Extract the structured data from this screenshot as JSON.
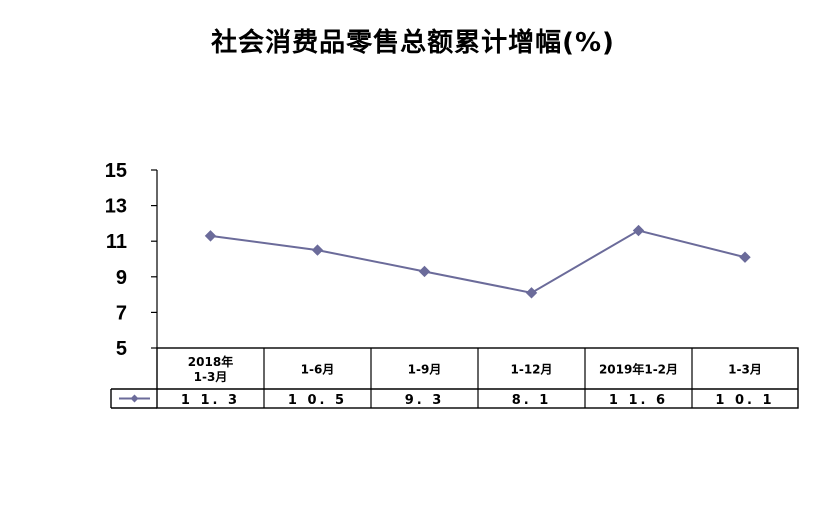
{
  "chart_data": {
    "type": "line",
    "title": "社会消费品零售总额累计增幅(%)",
    "categories": [
      [
        "2018年",
        "1-3月"
      ],
      [
        "1-6月"
      ],
      [
        "1-9月"
      ],
      [
        "1-12月"
      ],
      [
        "2019年1-2月"
      ],
      [
        "1-3月"
      ]
    ],
    "series": [
      {
        "values": [
          11.3,
          10.5,
          9.3,
          8.1,
          11.6,
          10.1
        ],
        "color": "#6b6b9a"
      }
    ],
    "value_labels": [
      "11.3",
      "10.5",
      "9.3",
      "8.1",
      "11.6",
      "10.1"
    ],
    "ylim": [
      5,
      15
    ],
    "yticks": [
      5,
      7,
      9,
      11,
      13,
      15
    ],
    "grid": false,
    "legend": "data-table-left",
    "data_table": true
  }
}
